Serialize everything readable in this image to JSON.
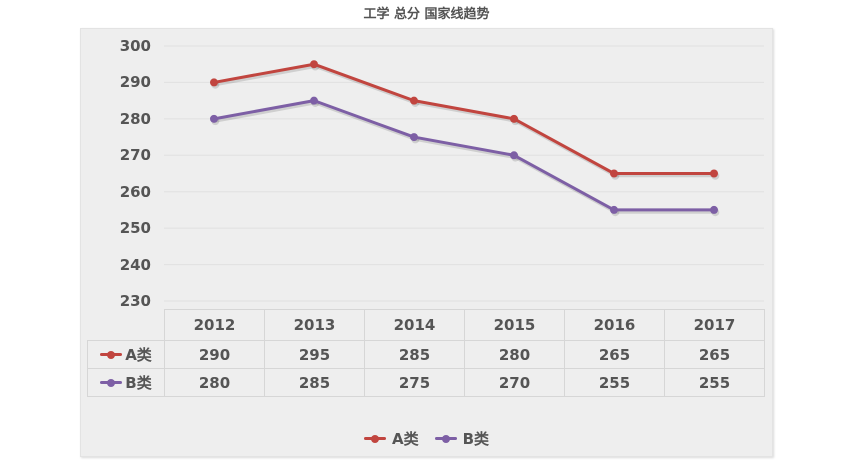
{
  "page": {
    "title": "工学 总分 国家线趋势"
  },
  "chart_data": {
    "type": "line",
    "title": "工学 总分 国家线趋势",
    "categories": [
      "2012",
      "2013",
      "2014",
      "2015",
      "2016",
      "2017"
    ],
    "series": [
      {
        "name": "A类",
        "color": "#c1453f",
        "values": [
          290,
          295,
          285,
          280,
          265,
          265
        ]
      },
      {
        "name": "B类",
        "color": "#7d5fa5",
        "values": [
          280,
          285,
          275,
          270,
          255,
          255
        ]
      }
    ],
    "yticks": [
      300,
      290,
      280,
      270,
      260,
      250,
      240,
      230
    ],
    "ylim": [
      230,
      300
    ],
    "grid": true,
    "legend_position": "bottom",
    "data_table_shown": true
  },
  "colors": {
    "panel_background": "#eeeeee",
    "grid_line": "#e0e0e0",
    "text": "#555555",
    "table_border": "#d6d6d6",
    "series_a": "#c1453f",
    "series_b": "#7d5fa5"
  }
}
